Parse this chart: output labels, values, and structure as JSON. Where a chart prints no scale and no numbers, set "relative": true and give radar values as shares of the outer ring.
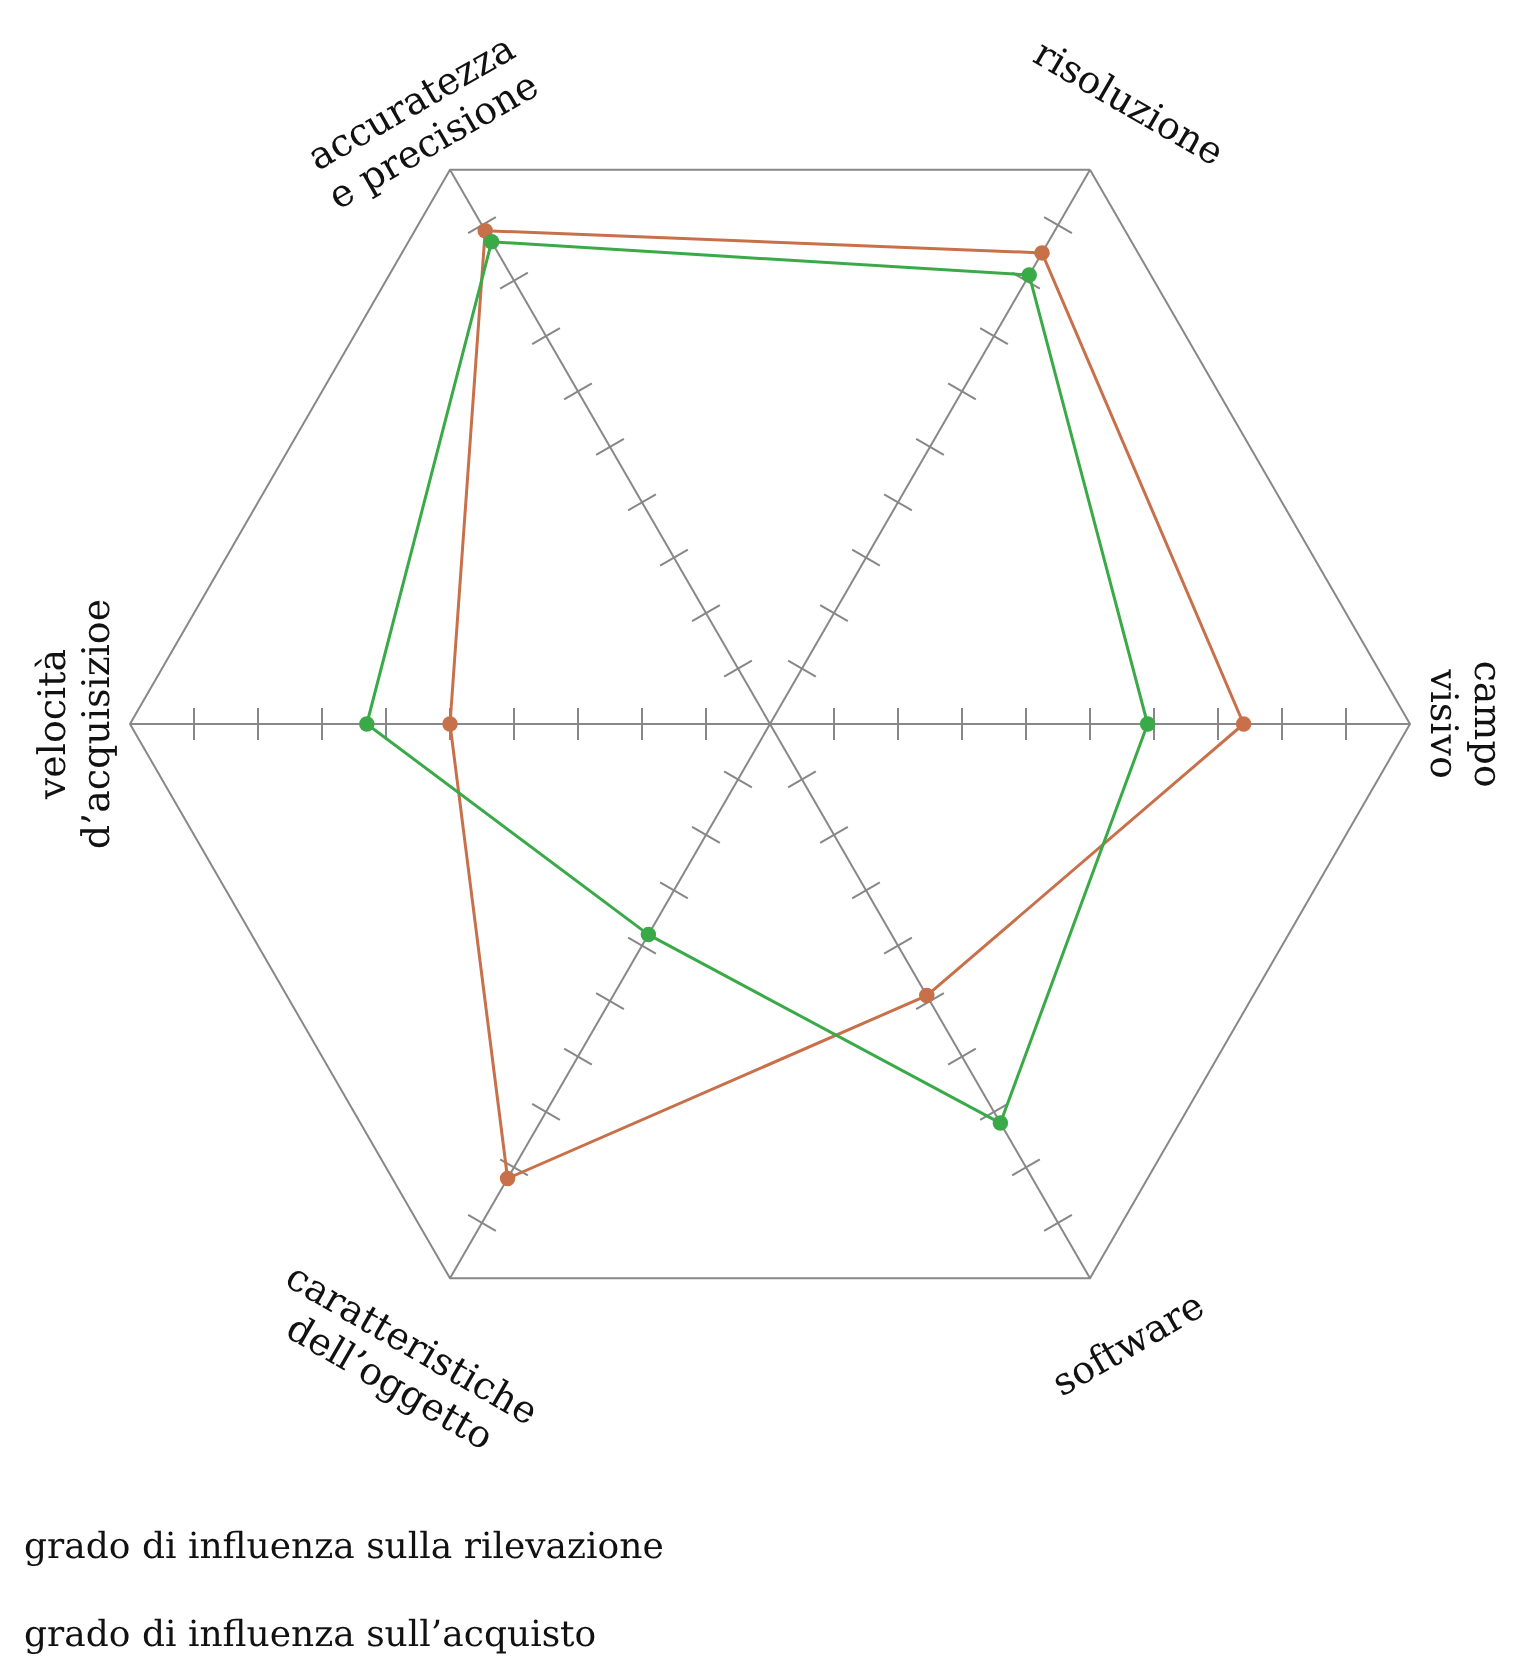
{
  "chart_data": {
    "type": "radar",
    "relative": true,
    "grid": true,
    "marker": "circle",
    "categories": [
      "risoluzione",
      "campo\nvisivo",
      "software",
      "caratteristiche\ndell’oggetto",
      "velocità\nd’acquisizioe",
      "accuratezza\ne precisione"
    ],
    "series": [
      {
        "color": "#c8704a",
        "values": [
          0.85,
          0.74,
          0.49,
          0.82,
          0.5,
          0.89
        ]
      },
      {
        "color": "#3aaa48",
        "values": [
          0.81,
          0.59,
          0.72,
          0.38,
          0.63,
          0.87
        ]
      }
    ],
    "annotations": [
      "grado di influenza sulla rilevazione",
      "grado di influenza sull’acquisto"
    ]
  }
}
